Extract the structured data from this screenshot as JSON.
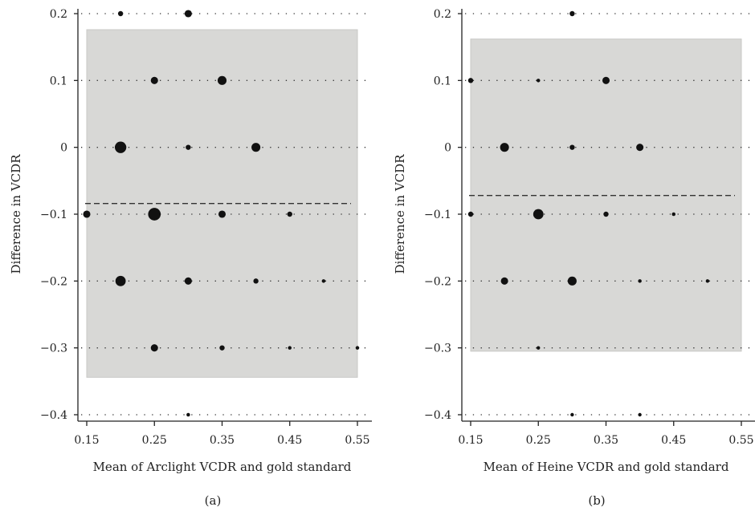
{
  "figure": {
    "panel_labels": [
      "(a)",
      "(b)"
    ]
  },
  "chart_data": [
    {
      "type": "scatter",
      "panel": "(a)",
      "xlabel": "Mean of Arclight VCDR and gold standard",
      "ylabel": "Difference in VCDR",
      "xlim": [
        0.15,
        0.55
      ],
      "ylim": [
        -0.4,
        0.2
      ],
      "xticks": [
        "0.15",
        "0.25",
        "0.35",
        "0.45",
        "0.55"
      ],
      "yticks": [
        "0.2",
        "0.1",
        "0",
        "−0.1",
        "−0.2",
        "−0.3",
        "−0.4"
      ],
      "mean_difference": -0.084,
      "limits_of_agreement": [
        -0.344,
        0.176
      ],
      "grid": "dotted horizontal lines at ticks",
      "points": [
        {
          "x": 0.2,
          "y": 0.2,
          "count": 1
        },
        {
          "x": 0.3,
          "y": 0.2,
          "count": 2
        },
        {
          "x": 0.25,
          "y": 0.1,
          "count": 2
        },
        {
          "x": 0.35,
          "y": 0.1,
          "count": 3
        },
        {
          "x": 0.2,
          "y": 0.0,
          "count": 5
        },
        {
          "x": 0.3,
          "y": 0.0,
          "count": 1
        },
        {
          "x": 0.4,
          "y": 0.0,
          "count": 3
        },
        {
          "x": 0.15,
          "y": -0.1,
          "count": 2
        },
        {
          "x": 0.25,
          "y": -0.1,
          "count": 6
        },
        {
          "x": 0.35,
          "y": -0.1,
          "count": 2
        },
        {
          "x": 0.45,
          "y": -0.1,
          "count": 1
        },
        {
          "x": 0.2,
          "y": -0.2,
          "count": 4
        },
        {
          "x": 0.3,
          "y": -0.2,
          "count": 2
        },
        {
          "x": 0.4,
          "y": -0.2,
          "count": 1
        },
        {
          "x": 0.5,
          "y": -0.2,
          "count": 0.5
        },
        {
          "x": 0.25,
          "y": -0.3,
          "count": 2
        },
        {
          "x": 0.35,
          "y": -0.3,
          "count": 1
        },
        {
          "x": 0.45,
          "y": -0.3,
          "count": 0.5
        },
        {
          "x": 0.55,
          "y": -0.3,
          "count": 0.5
        },
        {
          "x": 0.3,
          "y": -0.4,
          "count": 0.5
        }
      ]
    },
    {
      "type": "scatter",
      "panel": "(b)",
      "xlabel": "Mean of Heine VCDR and gold standard",
      "ylabel": "Difference in VCDR",
      "xlim": [
        0.15,
        0.55
      ],
      "ylim": [
        -0.4,
        0.2
      ],
      "xticks": [
        "0.15",
        "0.25",
        "0.35",
        "0.45",
        "0.55"
      ],
      "yticks": [
        "0.2",
        "0.1",
        "0",
        "−0.1",
        "−0.2",
        "−0.3",
        "−0.4"
      ],
      "mean_difference": -0.072,
      "limits_of_agreement": [
        -0.305,
        0.162
      ],
      "grid": "dotted horizontal lines at ticks",
      "points": [
        {
          "x": 0.3,
          "y": 0.2,
          "count": 1
        },
        {
          "x": 0.15,
          "y": 0.1,
          "count": 1
        },
        {
          "x": 0.25,
          "y": 0.1,
          "count": 0.5
        },
        {
          "x": 0.35,
          "y": 0.1,
          "count": 2
        },
        {
          "x": 0.2,
          "y": 0.0,
          "count": 3
        },
        {
          "x": 0.3,
          "y": 0.0,
          "count": 1
        },
        {
          "x": 0.4,
          "y": 0.0,
          "count": 2
        },
        {
          "x": 0.15,
          "y": -0.1,
          "count": 1
        },
        {
          "x": 0.25,
          "y": -0.1,
          "count": 4
        },
        {
          "x": 0.35,
          "y": -0.1,
          "count": 1
        },
        {
          "x": 0.45,
          "y": -0.1,
          "count": 0.5
        },
        {
          "x": 0.2,
          "y": -0.2,
          "count": 2
        },
        {
          "x": 0.3,
          "y": -0.2,
          "count": 3
        },
        {
          "x": 0.4,
          "y": -0.2,
          "count": 0.5
        },
        {
          "x": 0.5,
          "y": -0.2,
          "count": 0.3
        },
        {
          "x": 0.25,
          "y": -0.3,
          "count": 0.3
        },
        {
          "x": 0.3,
          "y": -0.4,
          "count": 0.3
        },
        {
          "x": 0.4,
          "y": -0.4,
          "count": 0.3
        }
      ]
    }
  ]
}
